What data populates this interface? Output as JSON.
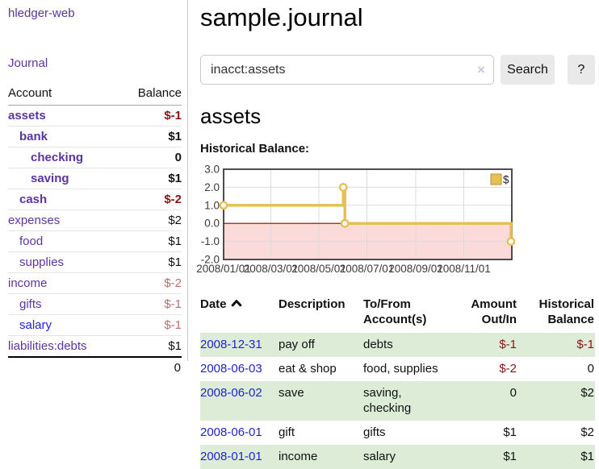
{
  "sidebar": {
    "app_title": "hledger-web",
    "nav": {
      "journal": "Journal"
    },
    "accounts_table": {
      "headers": {
        "account": "Account",
        "balance": "Balance"
      },
      "rows": [
        {
          "name": "assets",
          "balance": "$-1",
          "indent": 0,
          "bold": true,
          "name_tone": "purple",
          "balance_tone": "neg-strong"
        },
        {
          "name": "bank",
          "balance": "$1",
          "indent": 1,
          "bold": true,
          "name_tone": "purple",
          "balance_tone": "pos"
        },
        {
          "name": "checking",
          "balance": "0",
          "indent": 2,
          "bold": true,
          "name_tone": "purple",
          "balance_tone": "pos"
        },
        {
          "name": "saving",
          "balance": "$1",
          "indent": 2,
          "bold": true,
          "name_tone": "purple",
          "balance_tone": "pos"
        },
        {
          "name": "cash",
          "balance": "$-2",
          "indent": 1,
          "bold": true,
          "name_tone": "purple",
          "balance_tone": "neg-strong"
        },
        {
          "name": "expenses",
          "balance": "$2",
          "indent": 0,
          "bold": false,
          "name_tone": "purple",
          "balance_tone": "pos"
        },
        {
          "name": "food",
          "balance": "$1",
          "indent": 1,
          "bold": false,
          "name_tone": "purple",
          "balance_tone": "pos"
        },
        {
          "name": "supplies",
          "balance": "$1",
          "indent": 1,
          "bold": false,
          "name_tone": "purple",
          "balance_tone": "pos"
        },
        {
          "name": "income",
          "balance": "$-2",
          "indent": 0,
          "bold": false,
          "name_tone": "purple",
          "balance_tone": "neg-soft"
        },
        {
          "name": "gifts",
          "balance": "$-1",
          "indent": 1,
          "bold": false,
          "name_tone": "purple",
          "balance_tone": "neg-soft"
        },
        {
          "name": "salary",
          "balance": "$-1",
          "indent": 1,
          "bold": false,
          "name_tone": "blue",
          "balance_tone": "neg-soft"
        },
        {
          "name": "liabilities:debts",
          "balance": "$1",
          "indent": 0,
          "bold": false,
          "name_tone": "purple",
          "balance_tone": "pos"
        }
      ],
      "total": "0"
    }
  },
  "header": {
    "title": "sample.journal"
  },
  "search": {
    "query": "inacct:assets",
    "clear_icon": "×",
    "button_label": "Search",
    "help_label": "?"
  },
  "account_page": {
    "heading": "assets",
    "chart_title": "Historical Balance:"
  },
  "chart_data": {
    "type": "line",
    "step": true,
    "title": "Historical Balance:",
    "series": [
      {
        "name": "$",
        "points": [
          {
            "date": "2008-01-01",
            "value": 1
          },
          {
            "date": "2008-06-01",
            "value": 2
          },
          {
            "date": "2008-06-03",
            "value": 0
          },
          {
            "date": "2008-12-31",
            "value": -1
          }
        ]
      }
    ],
    "x_range": [
      "2008-01-01",
      "2009-01-01"
    ],
    "ylim": [
      -2,
      3
    ],
    "y_ticks": [
      3,
      2,
      1,
      0,
      -1,
      -2
    ],
    "y_tick_labels": [
      "3.0",
      "2.0",
      "1.0",
      "0.0",
      "-1.0",
      "-2.0"
    ],
    "x_tick_dates": [
      "2008-01-01",
      "2008-03-01",
      "2008-05-01",
      "2008-07-01",
      "2008-09-01",
      "2008-11-01"
    ],
    "x_tick_labels": [
      "2008/01/01",
      "2008/03/01",
      "2008/05/01",
      "2008/07/01",
      "2008/09/01",
      "2008/11/01"
    ],
    "legend": {
      "label": "$",
      "position": "top-right"
    },
    "grid": true,
    "colors": {
      "line": "#e6c054",
      "marker_fill": "#ffffff",
      "negative_region": "#fbdada",
      "zero_line": "#8e0000",
      "grid": "#dcdcdc",
      "border": "#4d4d4d"
    }
  },
  "register_table": {
    "headers": [
      {
        "label": "Date",
        "sort": "asc"
      },
      {
        "label": "Description"
      },
      {
        "label": "To/From Account(s)"
      },
      {
        "label": "Amount Out/In",
        "align": "right"
      },
      {
        "label": "Historical Balance",
        "align": "right"
      }
    ],
    "rows": [
      {
        "date": "2008-12-31",
        "description": "pay off",
        "accounts": "debts",
        "amount": "$-1",
        "balance": "$-1"
      },
      {
        "date": "2008-06-03",
        "description": "eat & shop",
        "accounts": "food, supplies",
        "amount": "$-2",
        "balance": "0"
      },
      {
        "date": "2008-06-02",
        "description": "save",
        "accounts": "saving, checking",
        "amount": "0",
        "balance": "$2"
      },
      {
        "date": "2008-06-01",
        "description": "gift",
        "accounts": "gifts",
        "amount": "$1",
        "balance": "$2"
      },
      {
        "date": "2008-01-01",
        "description": "income",
        "accounts": "salary",
        "amount": "$1",
        "balance": "$1"
      }
    ]
  }
}
